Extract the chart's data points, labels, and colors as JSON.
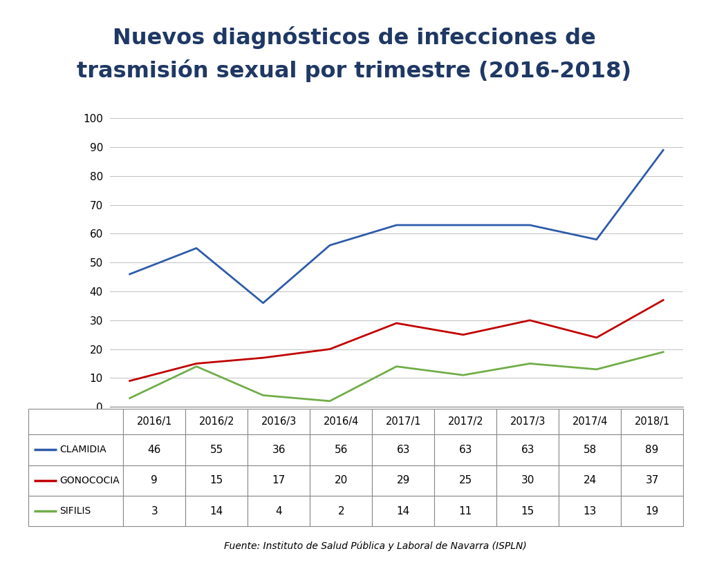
{
  "title_line1": "Nuevos diagnósticos de infecciones de",
  "title_line2": "trasmisión sexual por trimestre (2016-2018)",
  "title_color": "#1F3864",
  "categories": [
    "2016/1",
    "2016/2",
    "2016/3",
    "2016/4",
    "2017/1",
    "2017/2",
    "2017/3",
    "2017/4",
    "2018/1"
  ],
  "clamidia": [
    46,
    55,
    36,
    56,
    63,
    63,
    63,
    58,
    89
  ],
  "gonococia": [
    9,
    15,
    17,
    20,
    29,
    25,
    30,
    24,
    37
  ],
  "sifilis": [
    3,
    14,
    4,
    2,
    14,
    11,
    15,
    13,
    19
  ],
  "clamidia_color": "#2E5BA8",
  "gonococia_color": "#C00000",
  "sifilis_color": "#70AD47",
  "ylim": [
    0,
    100
  ],
  "yticks": [
    0,
    10,
    20,
    30,
    40,
    50,
    60,
    70,
    80,
    90,
    100
  ],
  "background_color": "#FFFFFF",
  "source_text": "Fuente: Instituto de Salud Pública y Laboral de Navarra (ISPLN)",
  "legend_labels": [
    "CLAMIDIA",
    "GONOCOCIA",
    "SIFILIS"
  ]
}
